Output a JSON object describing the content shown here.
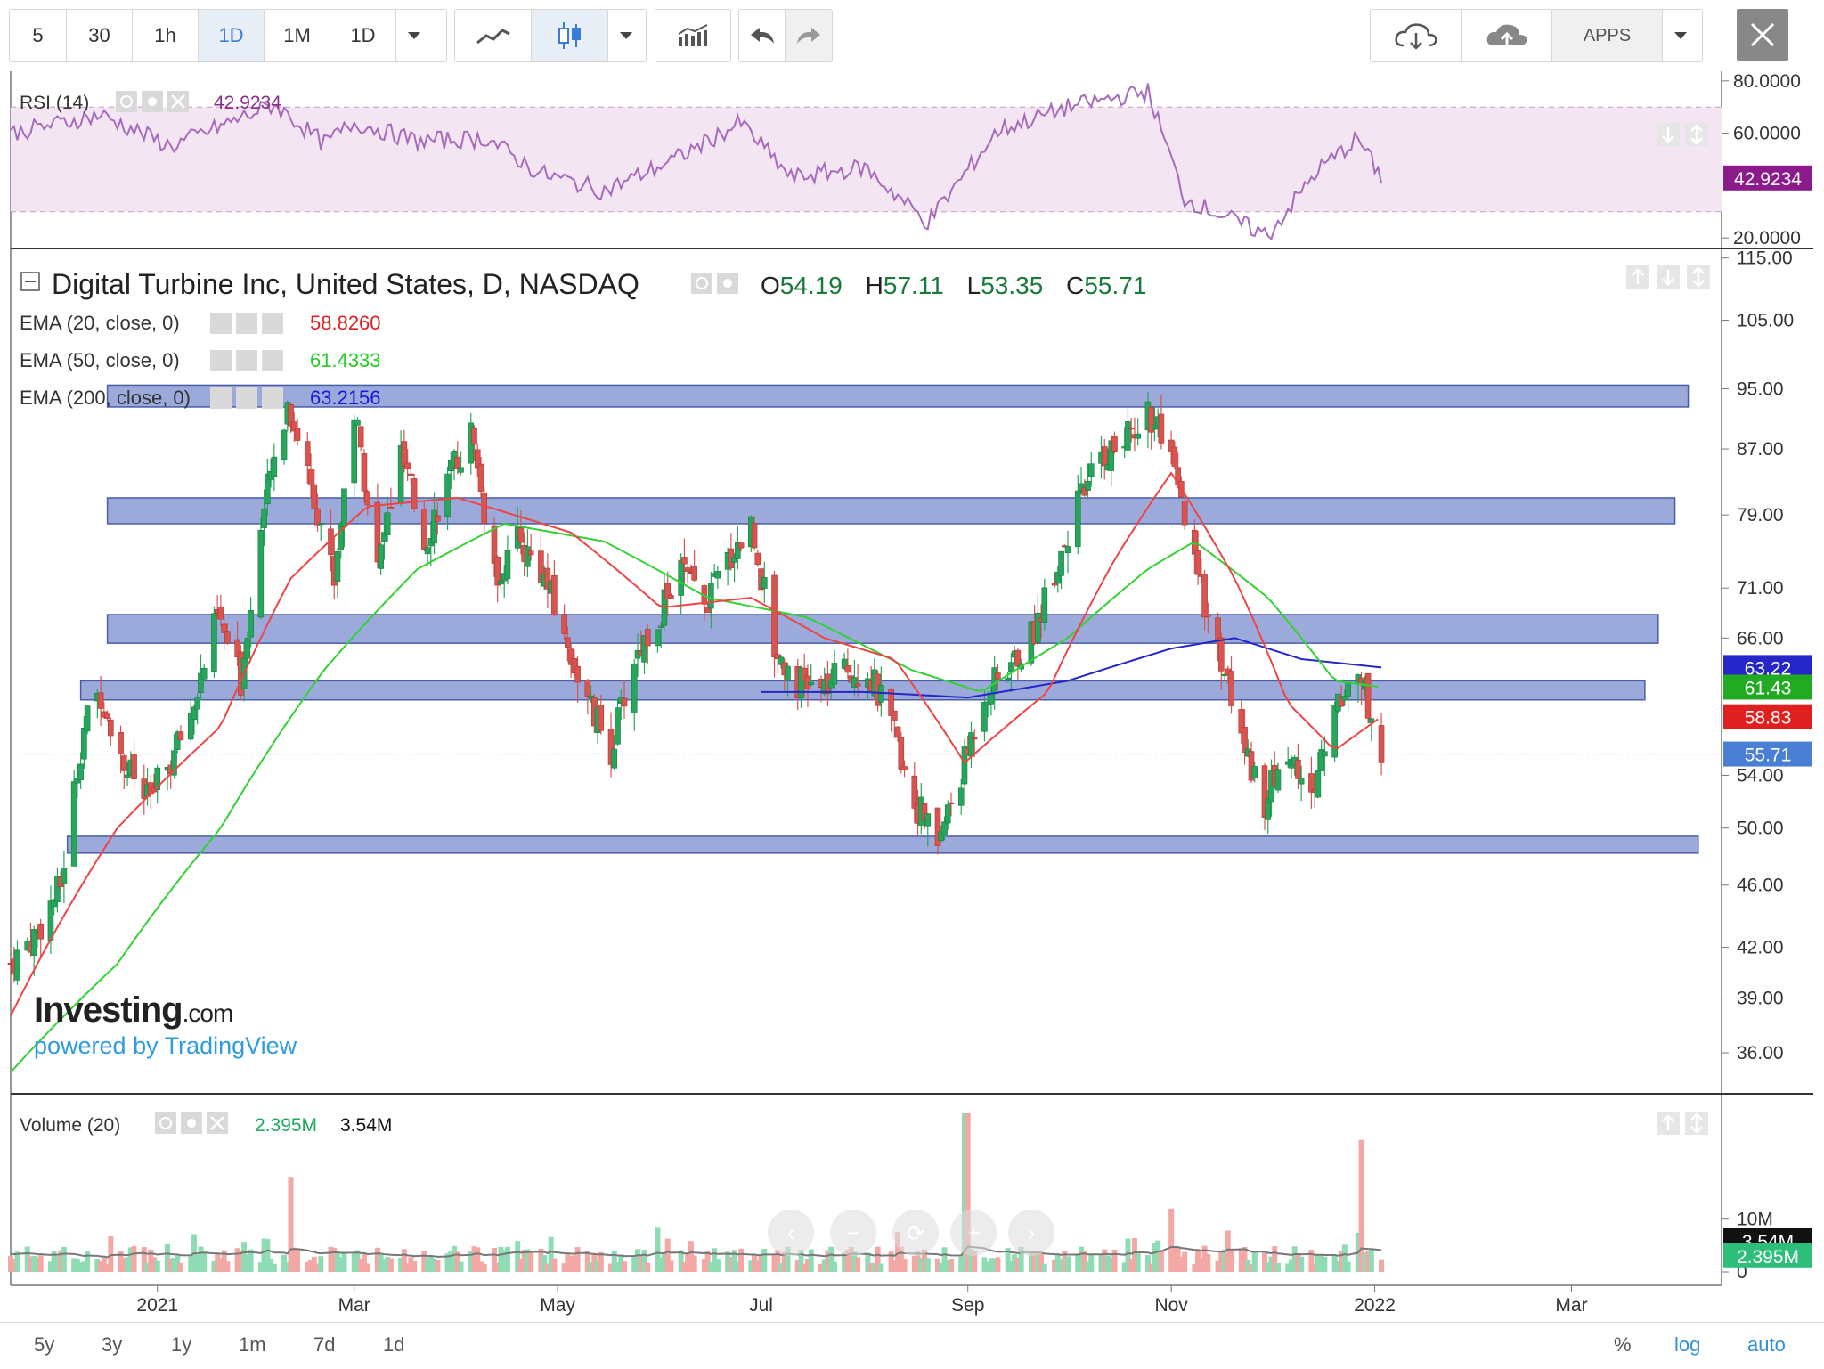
{
  "toolbar": {
    "intervals": [
      "5",
      "30",
      "1h",
      "1D",
      "1M",
      "1D"
    ],
    "active_interval": "1D",
    "apps_label": "APPS"
  },
  "colors": {
    "up": "#26a65b",
    "down": "#d9534f",
    "ema20": "#ef4444",
    "ema50": "#34d134",
    "ema200": "#2626c8",
    "rsi": "#a76bbd",
    "band": "#8a9bd3",
    "band_border": "#4a5ea8"
  },
  "rsi_panel": {
    "label": "RSI (14)",
    "value": "42.9234",
    "axis_ticks": [
      "80.0000",
      "60.0000",
      "20.0000"
    ],
    "last_badge": "42.9234"
  },
  "price_panel": {
    "symbol_title": "Digital Turbine Inc, United States, D, NASDAQ",
    "ohlc": {
      "o_label": "O",
      "o": "54.19",
      "h_label": "H",
      "h": "57.11",
      "l_label": "L",
      "l": "53.35",
      "c_label": "C",
      "c": "55.71"
    },
    "ema_legend": [
      {
        "label": "EMA (20, close, 0)",
        "value": "58.8260",
        "color": "#e02020"
      },
      {
        "label": "EMA (50, close, 0)",
        "value": "61.4333",
        "color": "#22cc22"
      },
      {
        "label": "EMA (200, close, 0)",
        "value": "63.2156",
        "color": "#1a1ad9"
      }
    ],
    "axis_ticks": [
      "115.00",
      "105.00",
      "95.00",
      "87.00",
      "79.00",
      "71.00",
      "66.00",
      "54.00",
      "50.00",
      "46.00",
      "42.00",
      "39.00",
      "36.00"
    ],
    "badges": [
      {
        "value": "63.22",
        "color": "#2626c8",
        "price": 63.22
      },
      {
        "value": "61.43",
        "color": "#22aa22",
        "price": 61.43
      },
      {
        "value": "58.83",
        "color": "#e02020",
        "price": 58.83
      },
      {
        "value": "55.71",
        "color": "#4a7fd6",
        "price": 55.71
      }
    ]
  },
  "volume_panel": {
    "label": "Volume (20)",
    "value": "2.395M",
    "avg": "3.54M",
    "axis_ticks": [
      "10M",
      "0"
    ],
    "badges": [
      {
        "value": "3.54M",
        "color": "#111111"
      },
      {
        "value": "2.395M",
        "color": "#2dbe7a"
      }
    ]
  },
  "x_axis": {
    "labels": [
      "2021",
      "Mar",
      "May",
      "Jul",
      "Sep",
      "Nov",
      "2022",
      "Mar"
    ]
  },
  "bottom_bar": {
    "ranges": [
      "5y",
      "3y",
      "1y",
      "1m",
      "7d",
      "1d"
    ],
    "right": [
      "%",
      "log",
      "auto"
    ]
  },
  "watermark": {
    "logo": "Investing",
    "logo_suffix": ".com",
    "sub": "powered by TradingView"
  },
  "chart_data": {
    "type": "candlestick",
    "title": "Digital Turbine Inc, United States, D, NASDAQ",
    "ylim": [
      34,
      116
    ],
    "y_scale": "log",
    "x_range": [
      "2020-11-18",
      "2022-04-15"
    ],
    "resistance_bands": [
      {
        "from": "2020-12-17",
        "to": "2022-04-05",
        "low": 92.5,
        "high": 95.5
      },
      {
        "from": "2020-12-17",
        "to": "2022-04-01",
        "low": 78.0,
        "high": 81.0
      },
      {
        "from": "2020-12-17",
        "to": "2022-03-27",
        "low": 65.5,
        "high": 68.3
      },
      {
        "from": "2020-12-09",
        "to": "2022-03-23",
        "low": 60.3,
        "high": 62.0
      },
      {
        "from": "2020-12-05",
        "to": "2022-04-08",
        "low": 48.2,
        "high": 49.4
      }
    ],
    "close_path": [
      [
        "2020-11-18",
        41
      ],
      [
        "2020-11-26",
        43
      ],
      [
        "2020-12-03",
        46
      ],
      [
        "2020-12-10",
        58
      ],
      [
        "2020-12-15",
        61
      ],
      [
        "2020-12-22",
        55
      ],
      [
        "2020-12-29",
        52
      ],
      [
        "2021-01-05",
        55
      ],
      [
        "2021-01-12",
        60
      ],
      [
        "2021-01-19",
        68
      ],
      [
        "2021-01-26",
        62
      ],
      [
        "2021-02-02",
        80
      ],
      [
        "2021-02-09",
        93
      ],
      [
        "2021-02-16",
        83
      ],
      [
        "2021-02-23",
        72
      ],
      [
        "2021-03-01",
        92
      ],
      [
        "2021-03-08",
        73
      ],
      [
        "2021-03-15",
        86
      ],
      [
        "2021-03-22",
        76
      ],
      [
        "2021-03-29",
        83
      ],
      [
        "2021-04-05",
        89
      ],
      [
        "2021-04-12",
        72
      ],
      [
        "2021-04-19",
        76
      ],
      [
        "2021-04-26",
        73
      ],
      [
        "2021-05-03",
        66
      ],
      [
        "2021-05-10",
        60
      ],
      [
        "2021-05-17",
        56
      ],
      [
        "2021-05-24",
        64
      ],
      [
        "2021-05-31",
        68
      ],
      [
        "2021-06-07",
        73
      ],
      [
        "2021-06-14",
        69
      ],
      [
        "2021-06-21",
        74
      ],
      [
        "2021-06-28",
        78
      ],
      [
        "2021-07-05",
        65
      ],
      [
        "2021-07-12",
        62
      ],
      [
        "2021-07-19",
        61
      ],
      [
        "2021-07-26",
        63
      ],
      [
        "2021-08-02",
        63
      ],
      [
        "2021-08-09",
        58
      ],
      [
        "2021-08-16",
        52
      ],
      [
        "2021-08-23",
        49
      ],
      [
        "2021-08-30",
        54
      ],
      [
        "2021-09-06",
        61
      ],
      [
        "2021-09-13",
        63
      ],
      [
        "2021-09-20",
        66
      ],
      [
        "2021-09-27",
        73
      ],
      [
        "2021-10-04",
        80
      ],
      [
        "2021-10-11",
        86
      ],
      [
        "2021-10-18",
        88
      ],
      [
        "2021-10-25",
        92
      ],
      [
        "2021-11-01",
        85
      ],
      [
        "2021-11-08",
        73
      ],
      [
        "2021-11-15",
        65
      ],
      [
        "2021-11-22",
        57
      ],
      [
        "2021-11-29",
        52
      ],
      [
        "2021-12-06",
        56
      ],
      [
        "2021-12-13",
        52
      ],
      [
        "2021-12-20",
        60
      ],
      [
        "2021-12-27",
        63
      ],
      [
        "2022-01-03",
        56
      ]
    ],
    "ema20_path": [
      [
        "2020-11-18",
        38
      ],
      [
        "2020-12-20",
        50
      ],
      [
        "2021-01-20",
        58
      ],
      [
        "2021-02-10",
        72
      ],
      [
        "2021-03-05",
        80
      ],
      [
        "2021-04-01",
        81
      ],
      [
        "2021-05-05",
        77
      ],
      [
        "2021-06-01",
        69
      ],
      [
        "2021-06-28",
        70
      ],
      [
        "2021-07-20",
        66
      ],
      [
        "2021-08-10",
        64
      ],
      [
        "2021-08-31",
        55
      ],
      [
        "2021-09-25",
        61
      ],
      [
        "2021-10-15",
        74
      ],
      [
        "2021-11-01",
        84
      ],
      [
        "2021-11-20",
        72
      ],
      [
        "2021-12-06",
        60
      ],
      [
        "2021-12-20",
        56
      ],
      [
        "2022-01-03",
        58.83
      ]
    ],
    "ema50_path": [
      [
        "2020-11-18",
        35
      ],
      [
        "2020-12-20",
        41
      ],
      [
        "2021-01-20",
        50
      ],
      [
        "2021-02-20",
        63
      ],
      [
        "2021-03-20",
        73
      ],
      [
        "2021-04-15",
        78
      ],
      [
        "2021-05-15",
        76
      ],
      [
        "2021-06-15",
        70
      ],
      [
        "2021-07-15",
        68
      ],
      [
        "2021-08-15",
        63
      ],
      [
        "2021-09-05",
        61
      ],
      [
        "2021-10-01",
        66
      ],
      [
        "2021-10-25",
        73
      ],
      [
        "2021-11-08",
        76
      ],
      [
        "2021-11-30",
        70
      ],
      [
        "2021-12-20",
        62
      ],
      [
        "2022-01-03",
        61.43
      ]
    ],
    "ema200_path": [
      [
        "2021-07-01",
        61
      ],
      [
        "2021-08-01",
        61
      ],
      [
        "2021-09-01",
        60.5
      ],
      [
        "2021-10-01",
        62
      ],
      [
        "2021-11-01",
        65
      ],
      [
        "2021-11-20",
        66
      ],
      [
        "2021-12-10",
        64
      ],
      [
        "2022-01-03",
        63.22
      ]
    ],
    "rsi_path": [
      [
        "2020-11-18",
        60
      ],
      [
        "2020-12-15",
        67
      ],
      [
        "2021-01-05",
        55
      ],
      [
        "2021-02-05",
        71
      ],
      [
        "2021-02-20",
        56
      ],
      [
        "2021-03-01",
        64
      ],
      [
        "2021-03-20",
        57
      ],
      [
        "2021-04-10",
        58
      ],
      [
        "2021-04-25",
        45
      ],
      [
        "2021-05-15",
        38
      ],
      [
        "2021-06-05",
        50
      ],
      [
        "2021-06-25",
        64
      ],
      [
        "2021-07-10",
        43
      ],
      [
        "2021-08-01",
        47
      ],
      [
        "2021-08-20",
        26
      ],
      [
        "2021-09-10",
        61
      ],
      [
        "2021-10-01",
        70
      ],
      [
        "2021-10-25",
        76
      ],
      [
        "2021-11-05",
        35
      ],
      [
        "2021-11-30",
        21
      ],
      [
        "2021-12-15",
        46
      ],
      [
        "2021-12-27",
        58
      ],
      [
        "2022-01-03",
        42.92
      ]
    ],
    "volume_summary": {
      "avg20": "3.54M",
      "last": "2.395M",
      "spikes": [
        [
          "2021-02-10",
          18
        ],
        [
          "2021-08-31",
          30
        ],
        [
          "2021-09-01",
          30
        ],
        [
          "2021-11-01",
          12
        ],
        [
          "2021-12-28",
          25
        ]
      ]
    }
  }
}
